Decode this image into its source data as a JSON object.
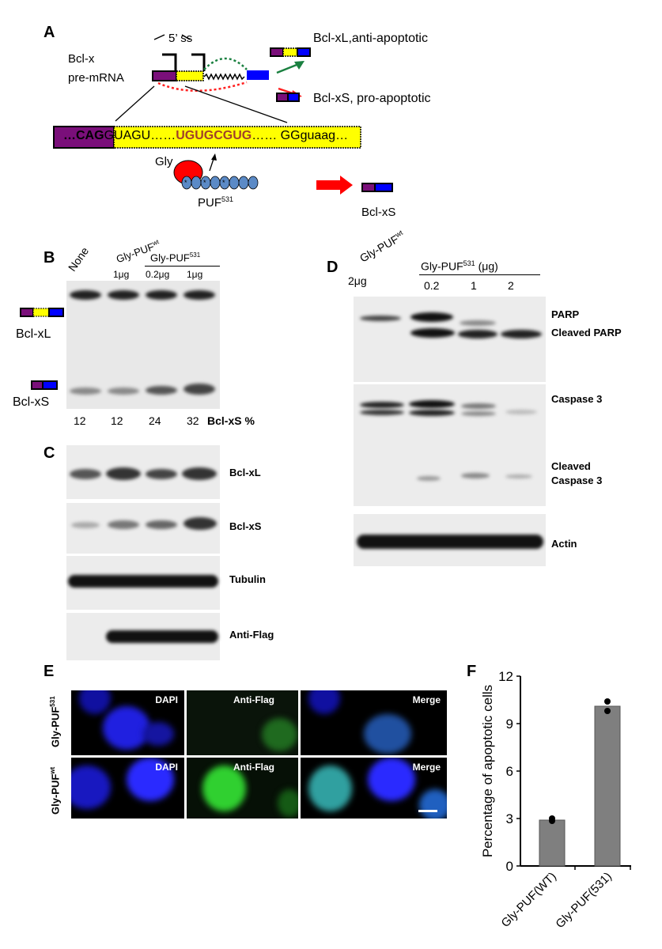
{
  "panel_labels": {
    "a": "A",
    "b": "B",
    "c": "C",
    "d": "D",
    "e": "E",
    "f": "F"
  },
  "panel_a": {
    "premrna_label_1": "Bcl-x",
    "premrna_label_2": "pre-mRNA",
    "splice_site": "5’ ss",
    "product_xl": "Bcl-xL,anti-apoptotic",
    "product_xs": "Bcl-xS, pro-apoptotic",
    "seq_prefix": "…CAG",
    "seq_part1": "GUAGU……",
    "seq_motif": "UGUGCGUG",
    "seq_part2": "……  GG",
    "seq_suffix": "guaag…",
    "gly": "Gly",
    "puf": "PUF",
    "puf_sup": "531",
    "result": "Bcl-xS",
    "colors": {
      "exon1": "#7a0f7a",
      "alt_exon": "#ffff00",
      "exon2": "#0000ff",
      "xl_path": "#1a8040",
      "xs_path": "#ff2020",
      "motif": "#a0402a",
      "gly": "#ff0000",
      "puf": "#5b8ac6"
    }
  },
  "panel_b": {
    "lanes": [
      {
        "text": "None"
      },
      {
        "text": "Gly-PUF",
        "sup": "wt",
        "dose": "1μg"
      },
      {
        "text": "Gly-PUF",
        "sup": "531",
        "dose": "0.2μg"
      },
      {
        "dose": "1μg"
      }
    ],
    "band_labels": [
      "Bcl-xL",
      "Bcl-xS"
    ],
    "percentages": [
      "12",
      "12",
      "24",
      "32"
    ],
    "percent_label": "Bcl-xS %"
  },
  "panel_c": {
    "blots": [
      "Bcl-xL",
      "Bcl-xS",
      "Tubulin",
      "Anti-Flag"
    ]
  },
  "panel_d": {
    "wt_label": "Gly-PUF",
    "wt_sup": "wt",
    "wt_dose": "2μg",
    "mut_label": "Gly-PUF",
    "mut_sup": "531",
    "mut_unit": " (μg)",
    "mut_doses": [
      "0.2",
      "1",
      "2"
    ],
    "blots": [
      "PARP",
      "Cleaved PARP",
      "Caspase 3",
      "Cleaved",
      "Caspase 3",
      "Actin"
    ]
  },
  "panel_e": {
    "rows": [
      {
        "label": "Gly-PUF",
        "sup": "531"
      },
      {
        "label": "Gly-PUF",
        "sup": "wt"
      }
    ],
    "columns": [
      "DAPI",
      "Anti-Flag",
      "Merge"
    ]
  },
  "chart_data": {
    "type": "bar",
    "categories": [
      "Gly-PUF(WT)",
      "Gly-PUF(531)"
    ],
    "values": [
      2.9,
      10.1
    ],
    "points": [
      [
        3.0,
        2.85
      ],
      [
        10.4,
        9.8
      ]
    ],
    "ylabel": "Percentage of apoptotic cells",
    "ylim": [
      0,
      12
    ],
    "yticks": [
      "0",
      "3",
      "6",
      "9",
      "12"
    ],
    "bar_color": "#7f7f7f",
    "grid": false
  }
}
